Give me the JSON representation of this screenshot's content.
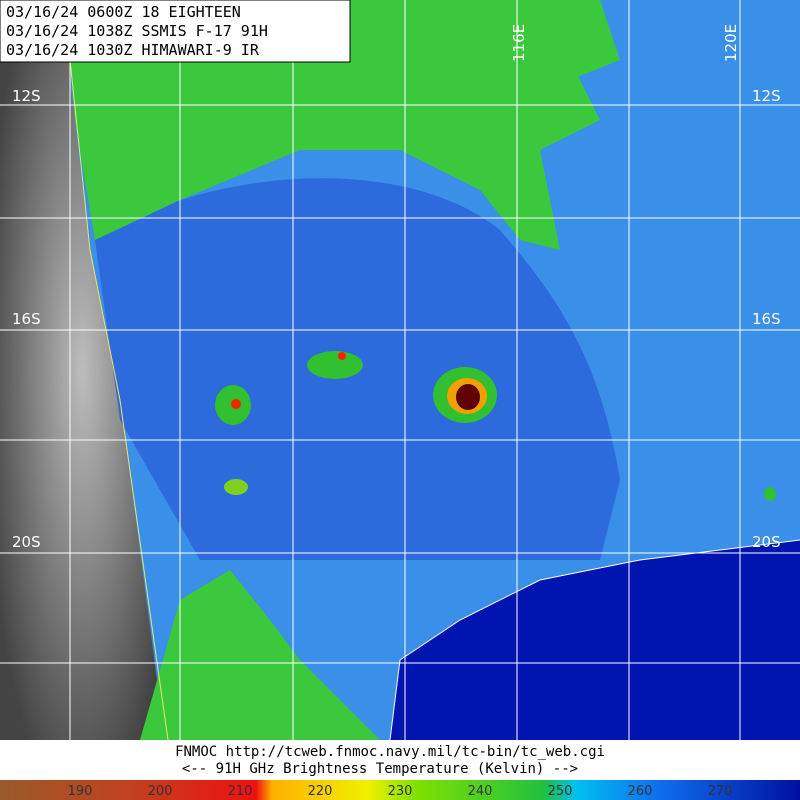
{
  "header": {
    "lines": [
      "03/16/24 0600Z  18 EIGHTEEN",
      "03/16/24 1038Z  SSMIS F-17 91H",
      "03/16/24 1030Z  HIMAWARI-9 IR"
    ]
  },
  "map": {
    "lon_labels": [
      "116E",
      "120E"
    ],
    "lat_labels_left": [
      "12S",
      "16S",
      "20S"
    ],
    "lat_labels_right": [
      "12S",
      "16S",
      "20S"
    ]
  },
  "footer": {
    "source": "FNMOC  http://tcweb.fnmoc.navy.mil/tc-bin/tc_web.cgi",
    "caption": "<--  91H GHz Brightness Temperature (Kelvin)  -->"
  },
  "colorbar": {
    "labels": [
      190,
      200,
      210,
      220,
      230,
      240,
      250,
      260,
      270
    ]
  }
}
